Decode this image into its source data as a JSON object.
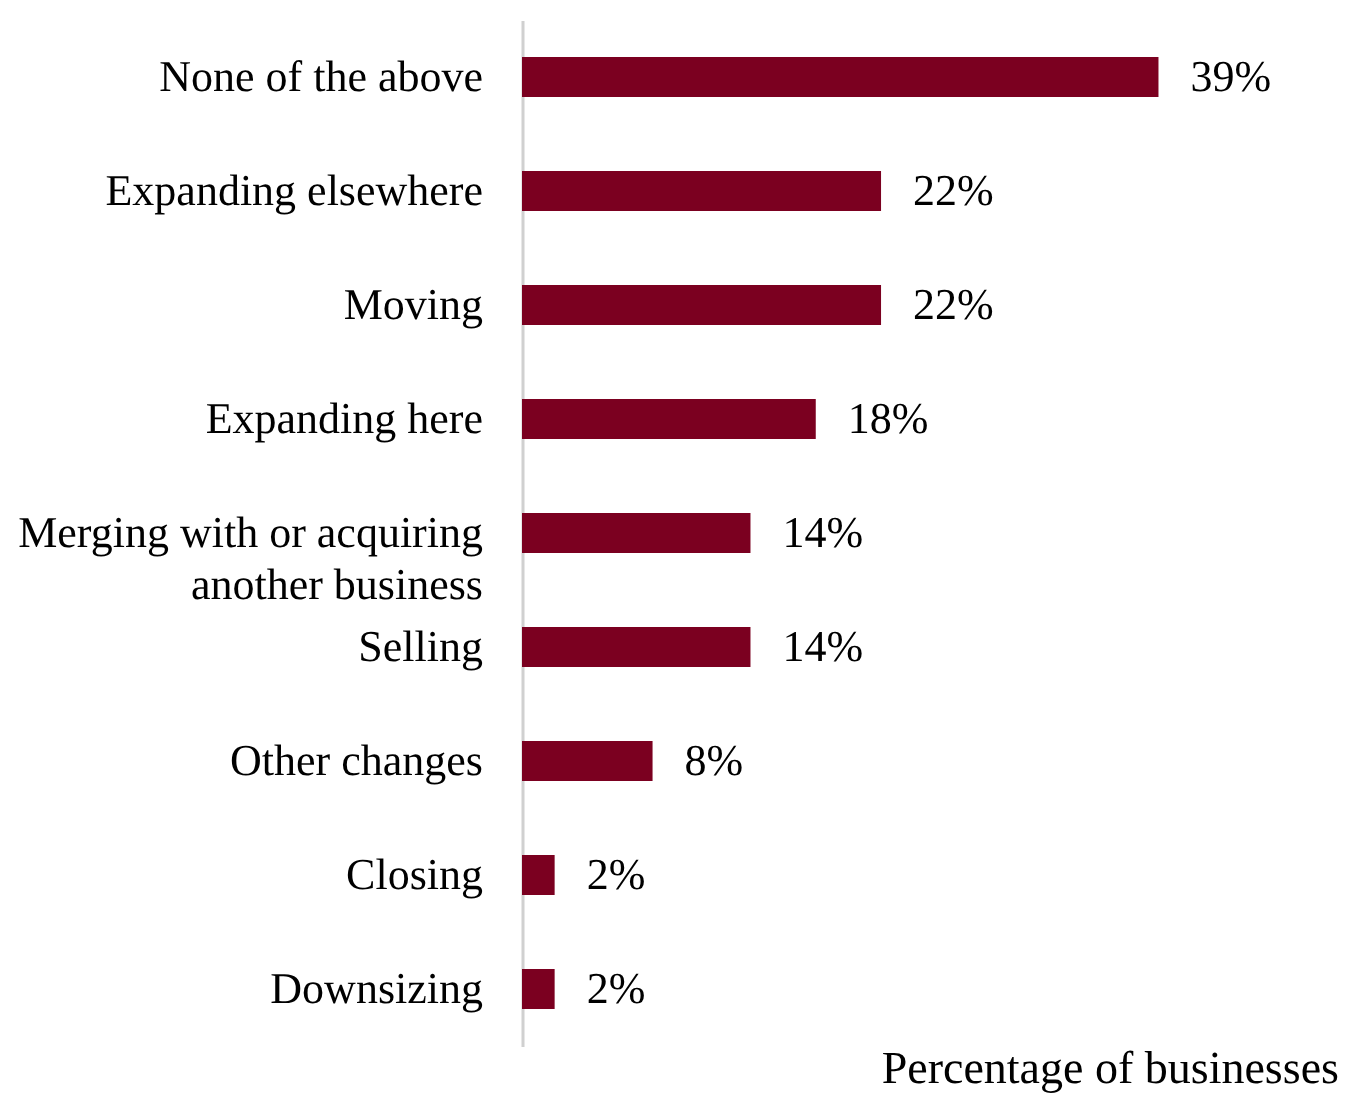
{
  "chart_data": {
    "type": "bar",
    "orientation": "horizontal",
    "xlabel": "Percentage of businesses",
    "categories": [
      "None of the above",
      "Expanding elsewhere",
      "Moving",
      "Expanding here",
      "Merging with or acquiring another business",
      "Selling",
      "Other changes",
      "Closing",
      "Downsizing"
    ],
    "values": [
      39,
      22,
      22,
      18,
      14,
      14,
      8,
      2,
      2
    ],
    "value_labels": [
      "39%",
      "22%",
      "22%",
      "18%",
      "14%",
      "14%",
      "8%",
      "2%",
      "2%"
    ],
    "color": "#7b0020"
  }
}
